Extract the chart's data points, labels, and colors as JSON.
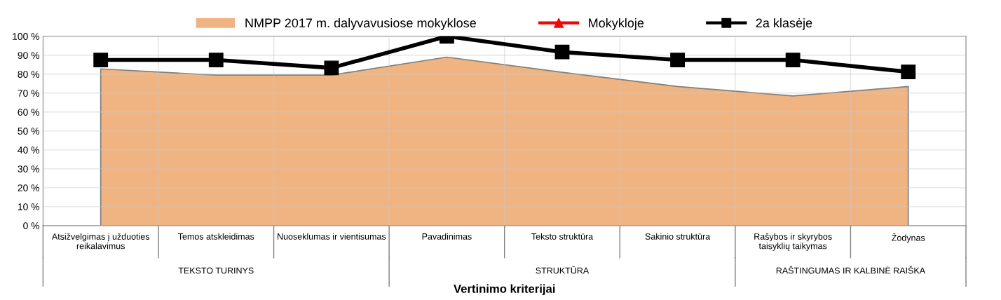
{
  "chart_data": {
    "type": "line",
    "xlabel": "Vertinimo kriterijai",
    "categories": [
      "Atsižvelgimas į užduoties reikalavimus",
      "Temos atskleidimas",
      "Nuoseklumas ir vientisumas",
      "Pavadinimas",
      "Teksto struktūra",
      "Sakinio struktūra",
      "Rašybos ir skyrybos taisyklių taikymas",
      "Žodynas"
    ],
    "series": [
      {
        "name": "NMPP 2017 m. dalyvavusiose mokyklose",
        "type": "area",
        "color": "#f0b482",
        "values": [
          82.8,
          79.5,
          79.5,
          89,
          81,
          73.5,
          68.5,
          73.5
        ]
      },
      {
        "name": "Mokykloje",
        "color": "#ff0000",
        "marker": "triangle",
        "values": [
          null,
          null,
          null,
          null,
          null,
          null,
          null,
          null
        ]
      },
      {
        "name": "2a klasėje",
        "color": "#000000",
        "marker": "square",
        "values": [
          87.5,
          87.5,
          83.3,
          100,
          91.7,
          87.5,
          87.5,
          81.2
        ]
      }
    ],
    "ylim": [
      0,
      100
    ],
    "yticks": [
      {
        "value": 0,
        "label": "0 %"
      },
      {
        "value": 10,
        "label": "10 %"
      },
      {
        "value": 20,
        "label": "20 %"
      },
      {
        "value": 30,
        "label": "30 %"
      },
      {
        "value": 40,
        "label": "40 %"
      },
      {
        "value": 50,
        "label": "50 %"
      },
      {
        "value": 60,
        "label": "60 %"
      },
      {
        "value": 70,
        "label": "70 %"
      },
      {
        "value": 80,
        "label": "80 %"
      },
      {
        "value": 90,
        "label": "90 %"
      },
      {
        "value": 100,
        "label": "100 %"
      }
    ],
    "annotations": [
      "TEKSTO TURINYS",
      "STRUKTŪRA",
      "RAŠTINGUMAS IR KALBINĖ RAIŠKA"
    ],
    "grid": true,
    "legend": "top"
  }
}
